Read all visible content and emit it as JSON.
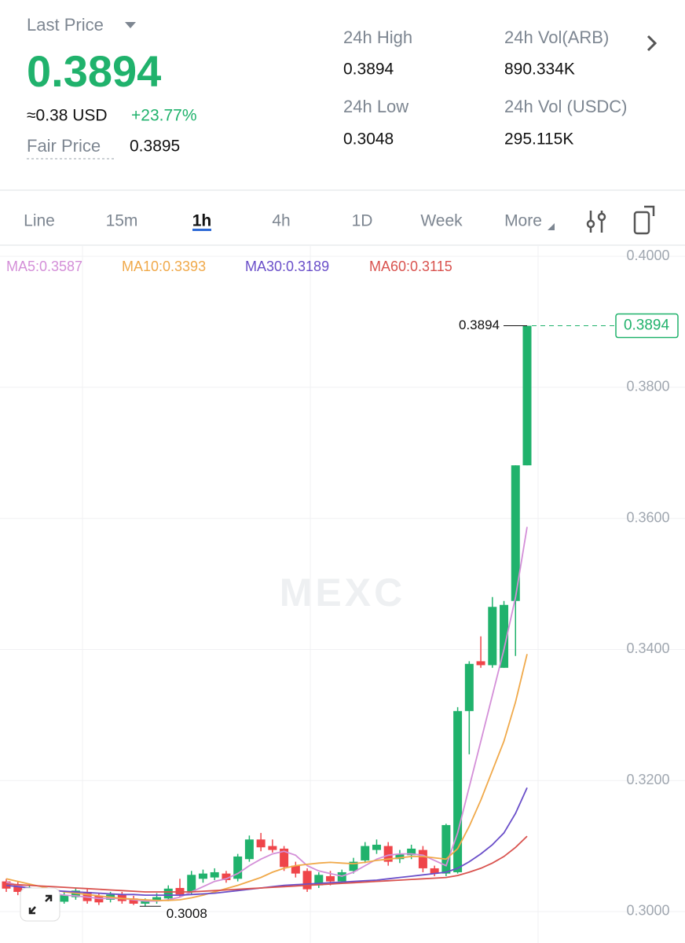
{
  "header": {
    "last_price_label": "Last Price",
    "last_price": "0.3894",
    "usd_price": "≈0.38 USD",
    "change": "+23.77%",
    "fair_price_label": "Fair Price",
    "fair_price": "0.3895",
    "stats": [
      {
        "label": "24h High",
        "value": "0.3894"
      },
      {
        "label": "24h Vol(ARB)",
        "value": "890.334K"
      },
      {
        "label": "24h Low",
        "value": "0.3048"
      },
      {
        "label": "24h Vol (USDC)",
        "value": "295.115K"
      }
    ]
  },
  "tabs": {
    "items": [
      "Line",
      "15m",
      "1h",
      "4h",
      "1D",
      "Week",
      "More"
    ],
    "active": 2
  },
  "chart_data": {
    "type": "candlestick",
    "watermark": "MEXC",
    "up_color": "#20b26c",
    "down_color": "#ef454a",
    "candles": {
      "open": [
        0.3046,
        0.304,
        0.3025,
        0.303,
        0.3025,
        0.3015,
        0.3022,
        0.303,
        0.3024,
        0.3018,
        0.3026,
        0.302,
        0.3012,
        0.3016,
        0.302,
        0.3036,
        0.303,
        0.305,
        0.3052,
        0.3058,
        0.305,
        0.308,
        0.311,
        0.31,
        0.3096,
        0.307,
        0.3062,
        0.304,
        0.3054,
        0.3046,
        0.3062,
        0.3078,
        0.3094,
        0.31,
        0.308,
        0.3086,
        0.3094,
        0.3066,
        0.3058,
        0.306,
        0.3306,
        0.3382,
        0.3376,
        0.3372,
        0.3474,
        0.3681
      ],
      "high": [
        0.305,
        0.3045,
        0.304,
        0.3035,
        0.303,
        0.303,
        0.3036,
        0.3034,
        0.3028,
        0.303,
        0.303,
        0.3024,
        0.302,
        0.3028,
        0.304,
        0.305,
        0.3062,
        0.3064,
        0.3066,
        0.3062,
        0.3088,
        0.3116,
        0.312,
        0.311,
        0.31,
        0.3076,
        0.3066,
        0.306,
        0.3062,
        0.3064,
        0.3082,
        0.3106,
        0.311,
        0.3106,
        0.3094,
        0.3102,
        0.31,
        0.307,
        0.3134,
        0.3312,
        0.3382,
        0.342,
        0.348,
        0.3474,
        0.3681,
        0.3894
      ],
      "low": [
        0.303,
        0.3025,
        0.3018,
        0.3012,
        0.301,
        0.3012,
        0.3018,
        0.3012,
        0.301,
        0.3014,
        0.3012,
        0.301,
        0.3008,
        0.3012,
        0.3016,
        0.3022,
        0.3026,
        0.3044,
        0.3048,
        0.3044,
        0.3046,
        0.3076,
        0.3092,
        0.309,
        0.3062,
        0.3052,
        0.303,
        0.3036,
        0.304,
        0.3042,
        0.3058,
        0.3074,
        0.3088,
        0.307,
        0.3074,
        0.308,
        0.306,
        0.3054,
        0.3054,
        0.3058,
        0.324,
        0.3372,
        0.3372,
        0.3372,
        0.339,
        0.3681
      ],
      "close": [
        0.3035,
        0.303,
        0.3035,
        0.302,
        0.3012,
        0.3025,
        0.3032,
        0.3016,
        0.3014,
        0.3026,
        0.3016,
        0.3012,
        0.3018,
        0.3022,
        0.3035,
        0.3026,
        0.3056,
        0.3058,
        0.306,
        0.3048,
        0.3084,
        0.311,
        0.3098,
        0.3094,
        0.3068,
        0.3058,
        0.3034,
        0.3056,
        0.3046,
        0.306,
        0.3076,
        0.31,
        0.3102,
        0.3076,
        0.3088,
        0.3096,
        0.3066,
        0.3058,
        0.3132,
        0.3306,
        0.3378,
        0.3376,
        0.3465,
        0.3468,
        0.3681,
        0.3894
      ]
    },
    "series": [
      {
        "name": "MA5:0.3587",
        "color": "#d48fd8",
        "values": [
          0.3045,
          0.304,
          0.3035,
          0.303,
          0.3028,
          0.3025,
          0.3024,
          0.3022,
          0.302,
          0.302,
          0.302,
          0.3018,
          0.3016,
          0.3016,
          0.3018,
          0.3022,
          0.303,
          0.3038,
          0.3046,
          0.305,
          0.3058,
          0.307,
          0.308,
          0.3088,
          0.3092,
          0.3086,
          0.307,
          0.3062,
          0.3058,
          0.3054,
          0.306,
          0.307,
          0.308,
          0.3086,
          0.3088,
          0.3088,
          0.3086,
          0.3078,
          0.307,
          0.312,
          0.319,
          0.326,
          0.333,
          0.34,
          0.348,
          0.3587
        ]
      },
      {
        "name": "MA10:0.3393",
        "color": "#f0a94a",
        "values": [
          0.305,
          0.3046,
          0.3042,
          0.3038,
          0.3034,
          0.303,
          0.3028,
          0.3026,
          0.3024,
          0.3022,
          0.302,
          0.3019,
          0.3018,
          0.3017,
          0.3017,
          0.3018,
          0.3021,
          0.3025,
          0.303,
          0.3035,
          0.304,
          0.3046,
          0.3052,
          0.306,
          0.3066,
          0.307,
          0.3072,
          0.3074,
          0.3075,
          0.3074,
          0.3073,
          0.3075,
          0.3078,
          0.308,
          0.3082,
          0.3084,
          0.3084,
          0.3082,
          0.308,
          0.3096,
          0.313,
          0.317,
          0.3215,
          0.326,
          0.332,
          0.3393
        ]
      },
      {
        "name": "MA30:0.3189",
        "color": "#6a4fc9",
        "values": [
          0.304,
          0.3038,
          0.3036,
          0.3034,
          0.3032,
          0.3031,
          0.303,
          0.3029,
          0.3028,
          0.3027,
          0.3026,
          0.3026,
          0.3025,
          0.3025,
          0.3025,
          0.3025,
          0.3026,
          0.3027,
          0.3028,
          0.303,
          0.3032,
          0.3034,
          0.3036,
          0.3038,
          0.304,
          0.3041,
          0.3042,
          0.3043,
          0.3044,
          0.3045,
          0.3046,
          0.3047,
          0.3048,
          0.305,
          0.3052,
          0.3054,
          0.3056,
          0.3058,
          0.306,
          0.3066,
          0.3076,
          0.3088,
          0.3102,
          0.312,
          0.315,
          0.3189
        ]
      },
      {
        "name": "MA60:0.3115",
        "color": "#d9534f",
        "values": [
          0.3042,
          0.3041,
          0.304,
          0.3039,
          0.3038,
          0.3037,
          0.3036,
          0.3035,
          0.3034,
          0.3033,
          0.3032,
          0.3031,
          0.303,
          0.303,
          0.303,
          0.303,
          0.303,
          0.3031,
          0.3032,
          0.3033,
          0.3034,
          0.3035,
          0.3036,
          0.3037,
          0.3038,
          0.3039,
          0.304,
          0.3041,
          0.3042,
          0.3043,
          0.3044,
          0.3045,
          0.3046,
          0.3047,
          0.3048,
          0.3049,
          0.305,
          0.3051,
          0.3052,
          0.3055,
          0.306,
          0.3066,
          0.3074,
          0.3084,
          0.3098,
          0.3115
        ]
      }
    ],
    "ylim": [
      0.2952,
      0.4017
    ],
    "yticks": [
      {
        "value": 0.3,
        "label": "0.3000"
      },
      {
        "value": 0.32,
        "label": "0.3200"
      },
      {
        "value": 0.34,
        "label": "0.3400"
      },
      {
        "value": 0.36,
        "label": "0.3600"
      },
      {
        "value": 0.38,
        "label": "0.3800"
      },
      {
        "value": 0.4,
        "label": "0.4000"
      }
    ],
    "grid": true,
    "annotations": {
      "high_label": "0.3894",
      "low_label": "0.3008",
      "price_tag": "0.3894"
    }
  }
}
